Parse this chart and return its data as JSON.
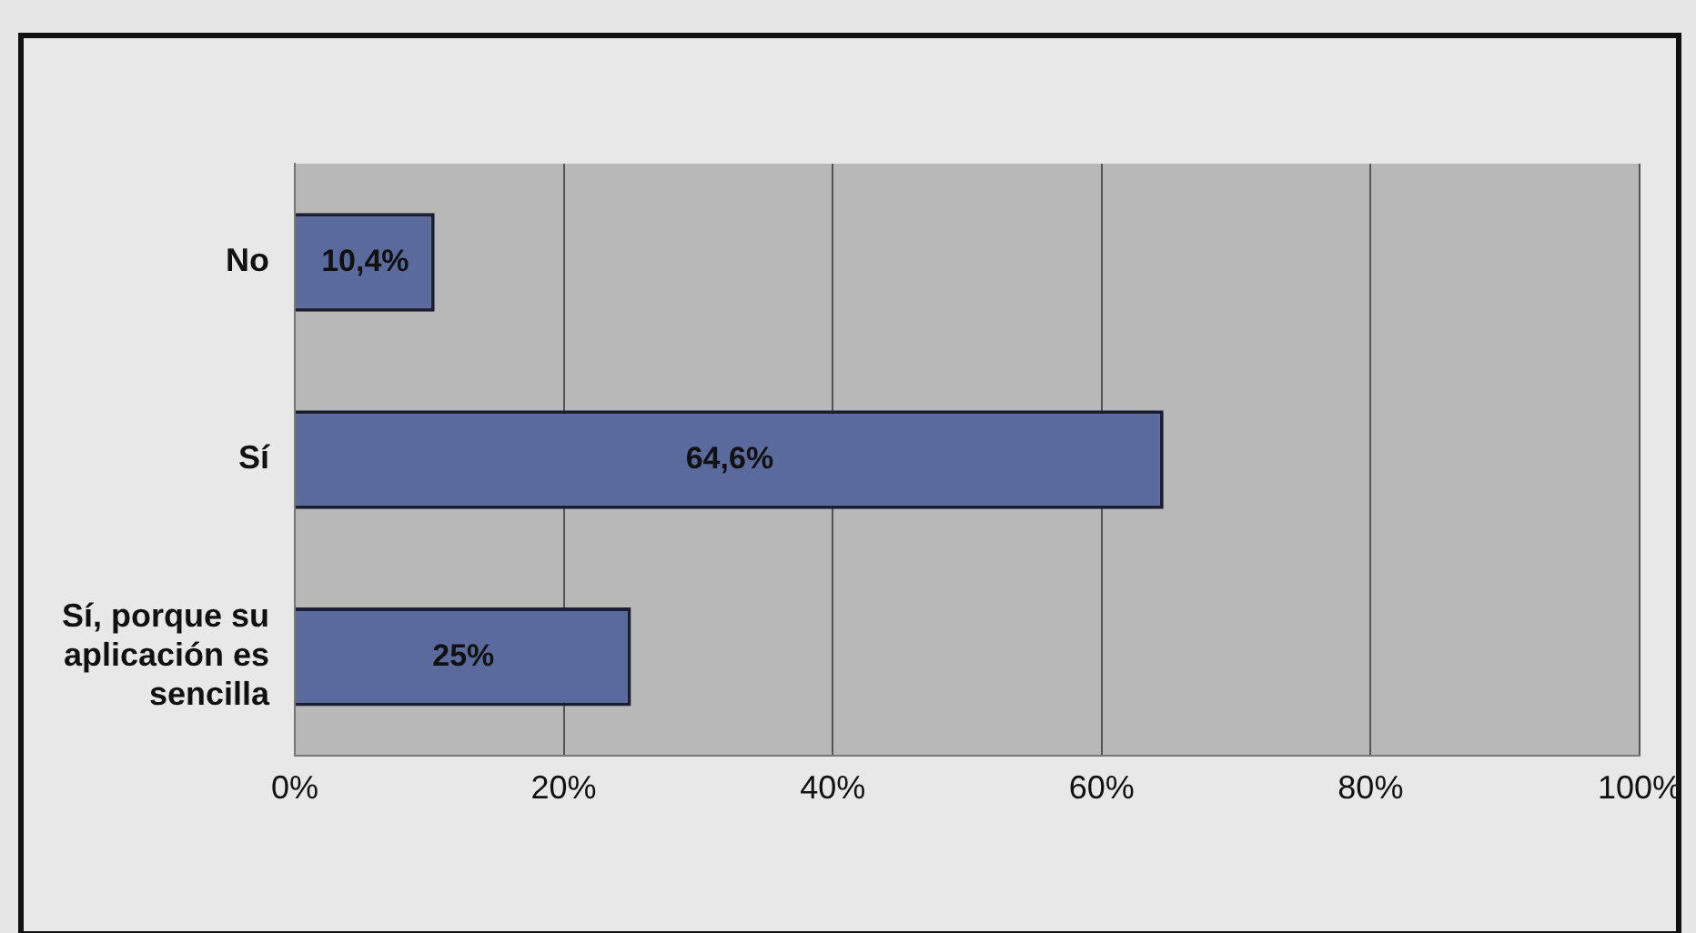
{
  "chart_data": {
    "type": "bar",
    "orientation": "horizontal",
    "categories": [
      "No",
      "Sí",
      "Sí, porque su aplicación es sencilla"
    ],
    "values": [
      10.4,
      64.6,
      25
    ],
    "color": "#5a6a9c",
    "value_labels": [
      "10,4%",
      "64,6%",
      "25%"
    ],
    "xlim": [
      0,
      100
    ],
    "xticks": [
      {
        "value": 0,
        "label": "0%"
      },
      {
        "value": 20,
        "label": "20%"
      },
      {
        "value": 40,
        "label": "40%"
      },
      {
        "value": 60,
        "label": "60%"
      },
      {
        "value": 80,
        "label": "80%"
      },
      {
        "value": 100,
        "label": "100%"
      }
    ],
    "grid": "x",
    "legend": false
  }
}
